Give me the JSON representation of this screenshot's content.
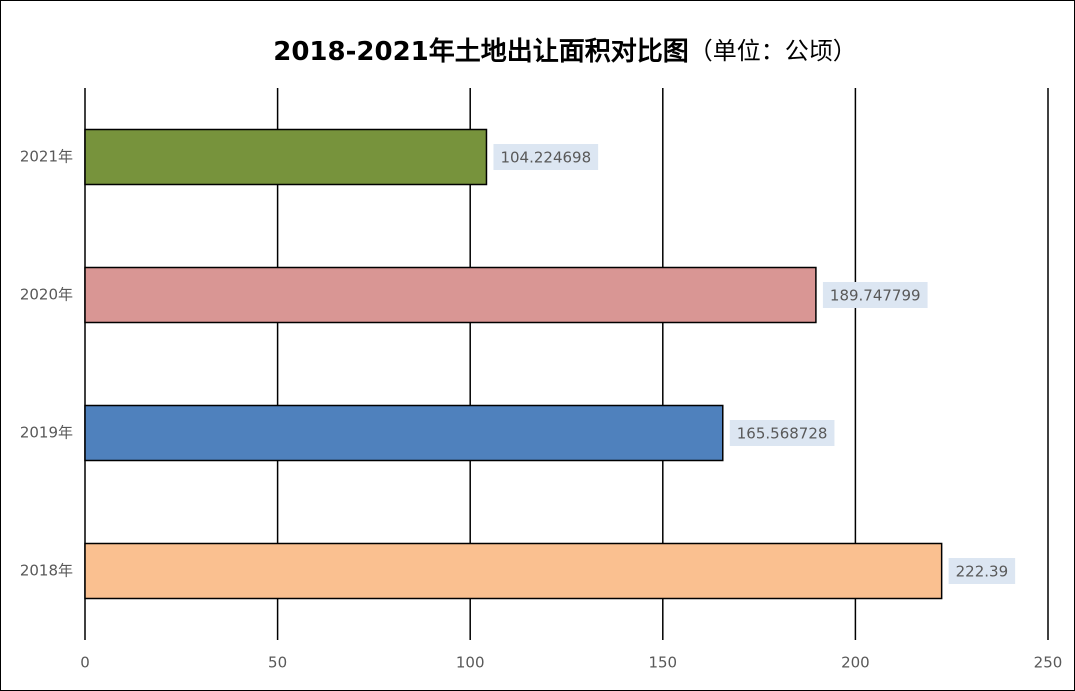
{
  "chart_data": {
    "type": "hbar",
    "title": "2018-2021年土地出让面积对比图",
    "subtitle": "（单位：公顷）",
    "categories": [
      "2018年",
      "2019年",
      "2020年",
      "2021年"
    ],
    "series": [
      {
        "name": "土地出让面积",
        "values": [
          222.39,
          165.568728,
          189.747799,
          104.224698
        ]
      }
    ],
    "colors": [
      "#fac090",
      "#4f81bd",
      "#d99694",
      "#77933c"
    ],
    "xlim": [
      0,
      250
    ],
    "xticks": [
      0,
      50,
      100,
      150,
      200,
      250
    ],
    "grid": true
  }
}
